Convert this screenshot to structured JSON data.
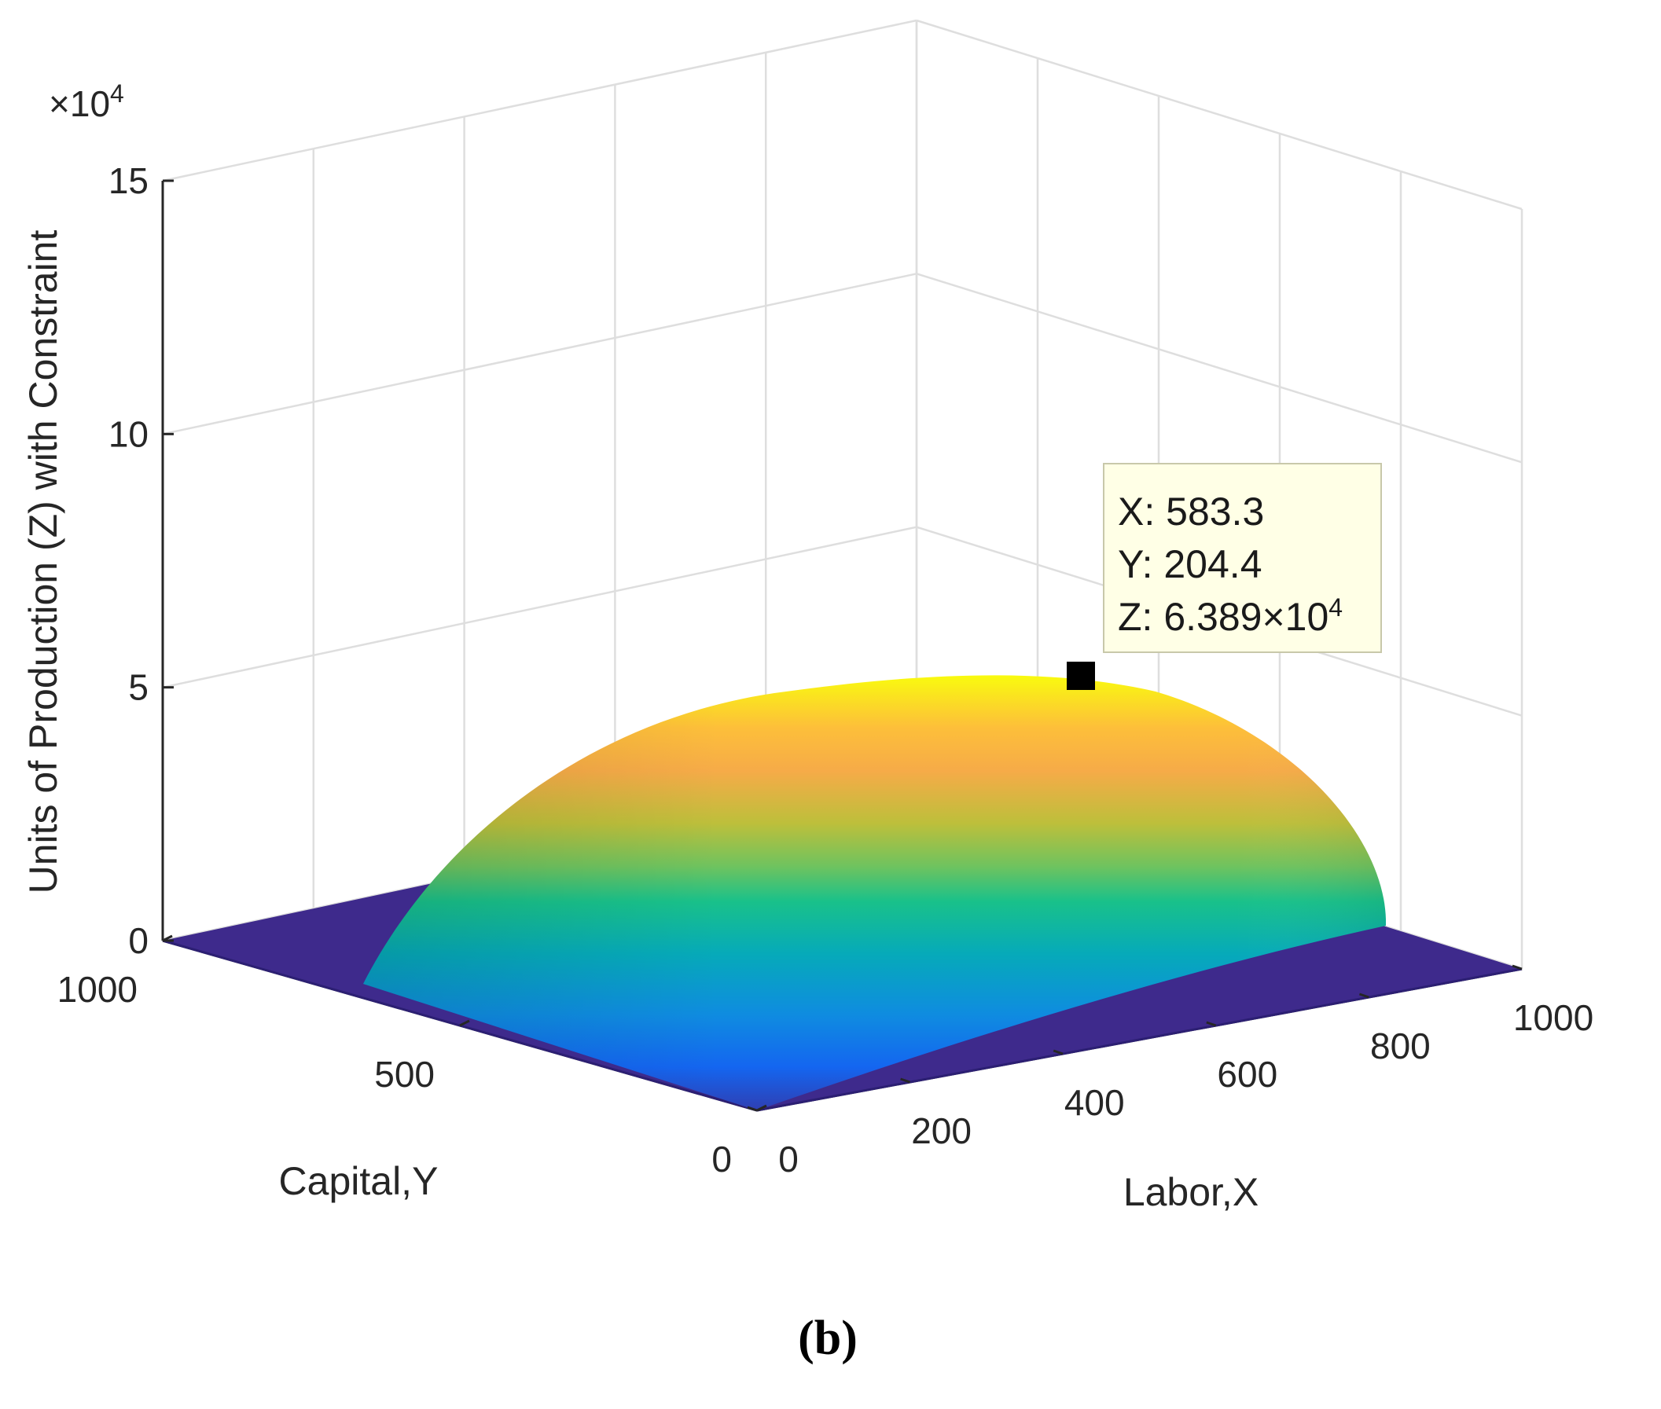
{
  "caption": "(b)",
  "chart_data": {
    "type": "surface",
    "zlabel": "Units of Production (Z) with Constraint",
    "xlabel": "Labor,X",
    "ylabel": "Capital,Y",
    "z_exponent_prefix": "×10",
    "z_exponent_power": "4",
    "xlim": [
      0,
      1000
    ],
    "ylim": [
      0,
      1000
    ],
    "zlim": [
      0,
      150000
    ],
    "x_ticks": [
      0,
      200,
      400,
      600,
      800,
      1000
    ],
    "y_ticks": [
      0,
      500,
      1000
    ],
    "z_ticks": [
      0,
      5,
      10,
      15
    ],
    "colormap": "parula",
    "grid": true,
    "datatip": {
      "x": 583.3,
      "y": 204.4,
      "z": 63890,
      "x_label": "X: 583.3",
      "y_label": "Y: 204.4",
      "z_prefix": "Z: 6.389×10",
      "z_power": "4"
    }
  }
}
